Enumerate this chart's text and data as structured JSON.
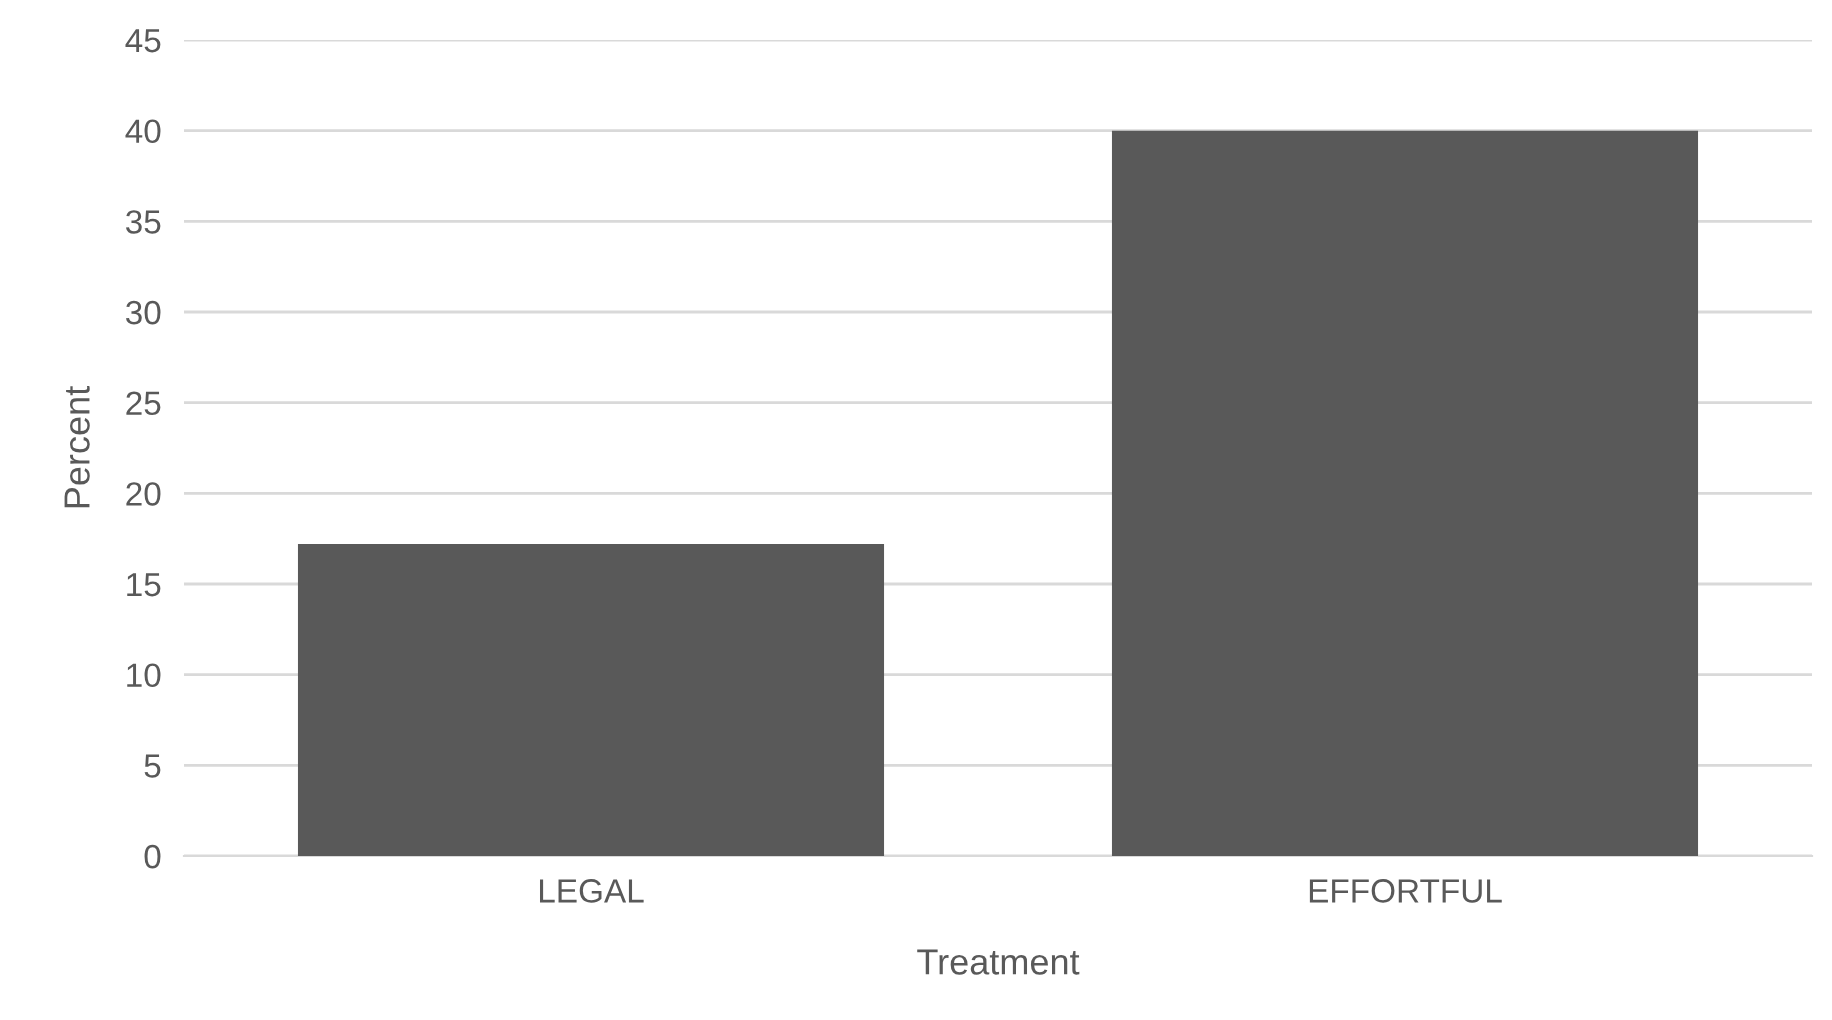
{
  "chart_data": {
    "type": "bar",
    "xlabel": "Treatment",
    "ylabel": "Percent",
    "categories": [
      "LEGAL",
      "EFFORTFUL"
    ],
    "values": [
      17.2,
      40
    ],
    "color": "#595959",
    "ylim": [
      0,
      45
    ],
    "yticks": [
      0,
      5,
      10,
      15,
      20,
      25,
      30,
      35,
      40,
      45
    ],
    "grid": "y",
    "legend": false
  }
}
